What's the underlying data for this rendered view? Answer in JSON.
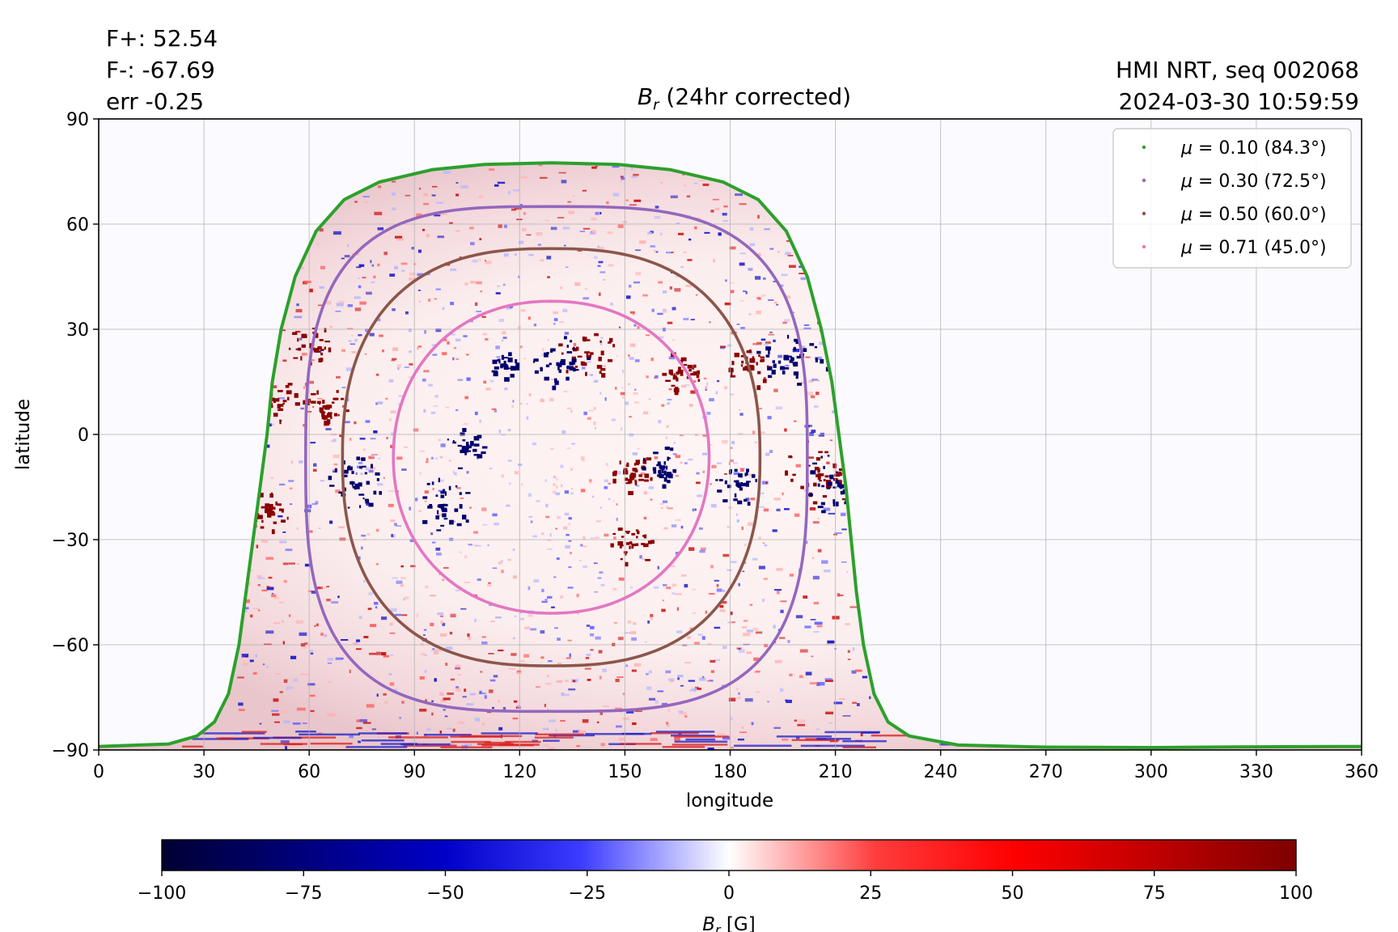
{
  "header": {
    "flux_pos": "F+: 52.54",
    "flux_neg": "F-: -67.69",
    "error": "err -0.25",
    "source": "HMI NRT, seq 002068",
    "timestamp": "2024-03-30 10:59:59",
    "title_symbol": "B",
    "title_sub": "r",
    "title_rest": " (24hr corrected)"
  },
  "colors": {
    "mu_010": "#2ca02c",
    "mu_030": "#9467bd",
    "mu_050": "#8c564b",
    "mu_071": "#e377c2",
    "background": "#fbfbff",
    "colormap": [
      "#000033",
      "#0000ff",
      "#ffffff",
      "#ff0000",
      "#7f0000"
    ]
  },
  "chart_data": {
    "type": "heatmap",
    "title": "B_r (24hr corrected)",
    "xlabel": "longitude",
    "ylabel": "latitude",
    "xlim": [
      0,
      360
    ],
    "ylim": [
      -90,
      90
    ],
    "xticks": [
      0,
      30,
      60,
      90,
      120,
      150,
      180,
      210,
      240,
      270,
      300,
      330,
      360
    ],
    "yticks": [
      -90,
      -60,
      -30,
      0,
      30,
      60,
      90
    ],
    "xtick_labels": [
      "0",
      "30",
      "60",
      "90",
      "120",
      "150",
      "180",
      "210",
      "240",
      "270",
      "300",
      "330",
      "360"
    ],
    "ytick_labels": [
      "−90",
      "−60",
      "−30",
      "0",
      "30",
      "60",
      "90"
    ],
    "grid": true,
    "legend_position": "top-right",
    "disk_center": {
      "lon": 129,
      "lat": -5
    },
    "series": [
      {
        "name": "μ = 0.10 (84.3°)",
        "mu_prefix": "μ",
        "mu_text": " = 0.10 (84.3°)",
        "color": "#2ca02c",
        "angle_deg": 84.3,
        "points": [
          [
            0,
            -89
          ],
          [
            20,
            -88.3
          ],
          [
            28,
            -86
          ],
          [
            33,
            -82
          ],
          [
            37,
            -74
          ],
          [
            40,
            -60
          ],
          [
            42,
            -45
          ],
          [
            44,
            -30
          ],
          [
            46,
            -15
          ],
          [
            48,
            0
          ],
          [
            49.5,
            15
          ],
          [
            52,
            30
          ],
          [
            56,
            45
          ],
          [
            62,
            58
          ],
          [
            70,
            67
          ],
          [
            80,
            72
          ],
          [
            95,
            75.5
          ],
          [
            110,
            77
          ],
          [
            129,
            77.5
          ],
          [
            148,
            77
          ],
          [
            163,
            75.5
          ],
          [
            178,
            72
          ],
          [
            188,
            67
          ],
          [
            196,
            58
          ],
          [
            202,
            45
          ],
          [
            206,
            30
          ],
          [
            209,
            15
          ],
          [
            211,
            0
          ],
          [
            213,
            -15
          ],
          [
            214.5,
            -30
          ],
          [
            216,
            -45
          ],
          [
            218,
            -60
          ],
          [
            221,
            -74
          ],
          [
            225,
            -82
          ],
          [
            231,
            -86
          ],
          [
            245,
            -88.6
          ],
          [
            270,
            -89.2
          ],
          [
            300,
            -89.3
          ],
          [
            330,
            -89.1
          ],
          [
            360,
            -89
          ]
        ]
      },
      {
        "name": "μ = 0.30 (72.5°)",
        "mu_prefix": "μ",
        "mu_text": " = 0.30 (72.5°)",
        "color": "#9467bd",
        "angle_deg": 72.5,
        "center": [
          129,
          -5
        ],
        "half_widths": [
          73,
          70
        ],
        "lat_range": [
          -79,
          65
        ],
        "exponents": [
          3.4,
          3.0
        ]
      },
      {
        "name": "μ = 0.50 (60.0°)",
        "mu_prefix": "μ",
        "mu_text": " = 0.50 (60.0°)",
        "color": "#8c564b",
        "angle_deg": 60.0,
        "center": [
          129,
          -5
        ],
        "half_widths": [
          59.5,
          59.5
        ],
        "lat_range": [
          -66,
          53
        ],
        "exponents": [
          2.6,
          2.4
        ]
      },
      {
        "name": "μ = 0.71 (45.0°)",
        "mu_prefix": "μ",
        "mu_text": " = 0.71 (45.0°)",
        "color": "#e377c2",
        "angle_deg": 45.0,
        "center": [
          129,
          -5
        ],
        "half_widths": [
          45,
          45
        ],
        "lat_range": [
          -51,
          38
        ],
        "exponents": [
          2.15,
          2.1
        ]
      }
    ],
    "active_regions": [
      {
        "lon": 139,
        "lat": 23,
        "polarity": "positive",
        "size": 4
      },
      {
        "lon": 131,
        "lat": 21,
        "polarity": "negative",
        "size": 4
      },
      {
        "lon": 196,
        "lat": 22,
        "polarity": "negative",
        "size": 4
      },
      {
        "lon": 184,
        "lat": 19,
        "polarity": "positive",
        "size": 3
      },
      {
        "lon": 205,
        "lat": -11,
        "polarity": "positive",
        "size": 5
      },
      {
        "lon": 211,
        "lat": -14,
        "polarity": "negative",
        "size": 5
      },
      {
        "lon": 212,
        "lat": 24,
        "polarity": "negative",
        "size": 4
      },
      {
        "lon": 73,
        "lat": -14,
        "polarity": "negative",
        "size": 4
      },
      {
        "lon": 98,
        "lat": -20,
        "polarity": "negative",
        "size": 4
      },
      {
        "lon": 104,
        "lat": -4,
        "polarity": "negative",
        "size": 3
      },
      {
        "lon": 152,
        "lat": -11,
        "polarity": "positive",
        "size": 3
      },
      {
        "lon": 160,
        "lat": -9,
        "polarity": "negative",
        "size": 3
      },
      {
        "lon": 182,
        "lat": -14,
        "polarity": "negative",
        "size": 3
      },
      {
        "lon": 152,
        "lat": -31,
        "polarity": "positive",
        "size": 3
      },
      {
        "lon": 64,
        "lat": 8,
        "polarity": "positive",
        "size": 3
      },
      {
        "lon": 60,
        "lat": 26,
        "polarity": "positive",
        "size": 3
      },
      {
        "lon": 48,
        "lat": -22,
        "polarity": "positive",
        "size": 3
      },
      {
        "lon": 50,
        "lat": 10,
        "polarity": "positive",
        "size": 3
      },
      {
        "lon": 165,
        "lat": 18,
        "polarity": "positive",
        "size": 3
      },
      {
        "lon": 115,
        "lat": 20,
        "polarity": "negative",
        "size": 2
      }
    ],
    "colorbar": {
      "label_symbol": "B",
      "label_sub": "r",
      "label_unit": " [G]",
      "min": -100,
      "max": 100,
      "ticks": [
        -100,
        -75,
        -50,
        -25,
        0,
        25,
        50,
        75,
        100
      ],
      "tick_labels": [
        "−100",
        "−75",
        "−50",
        "−25",
        "0",
        "25",
        "50",
        "75",
        "100"
      ]
    }
  }
}
